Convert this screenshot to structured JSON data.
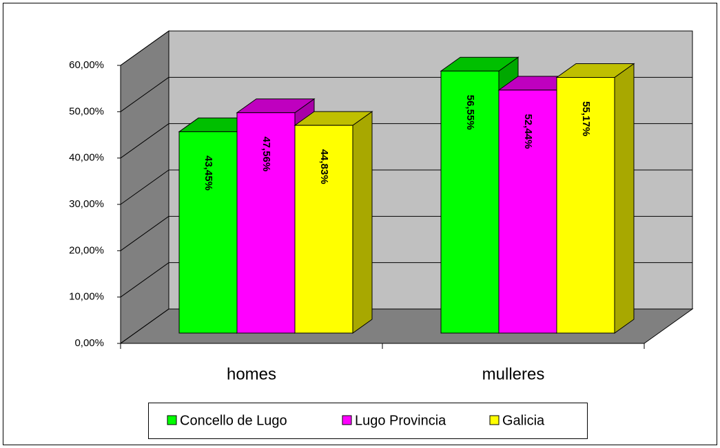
{
  "chart_data": {
    "type": "bar3d",
    "categories": [
      "homes",
      "mulleres"
    ],
    "series": [
      {
        "name": "Concello de Lugo",
        "color": "#00ff00",
        "values": [
          43.45,
          56.55
        ],
        "value_labels": [
          "43,45%",
          "56,55%"
        ]
      },
      {
        "name": "Lugo Provincia",
        "color": "#ff00ff",
        "values": [
          47.56,
          52.44
        ],
        "value_labels": [
          "47,56%",
          "52,44%"
        ]
      },
      {
        "name": "Galicia",
        "color": "#ffff00",
        "values": [
          44.83,
          55.17
        ],
        "value_labels": [
          "44,83%",
          "55,17%"
        ]
      }
    ],
    "ylim": [
      0,
      60
    ],
    "yticks": [
      {
        "value": 0,
        "label": "0,00%"
      },
      {
        "value": 10,
        "label": "10,00%"
      },
      {
        "value": 20,
        "label": "20,00%"
      },
      {
        "value": 30,
        "label": "30,00%"
      },
      {
        "value": 40,
        "label": "40,00%"
      },
      {
        "value": 50,
        "label": "50,00%"
      },
      {
        "value": 60,
        "label": "60,00%"
      }
    ],
    "grid": true,
    "legend": "bottom"
  }
}
